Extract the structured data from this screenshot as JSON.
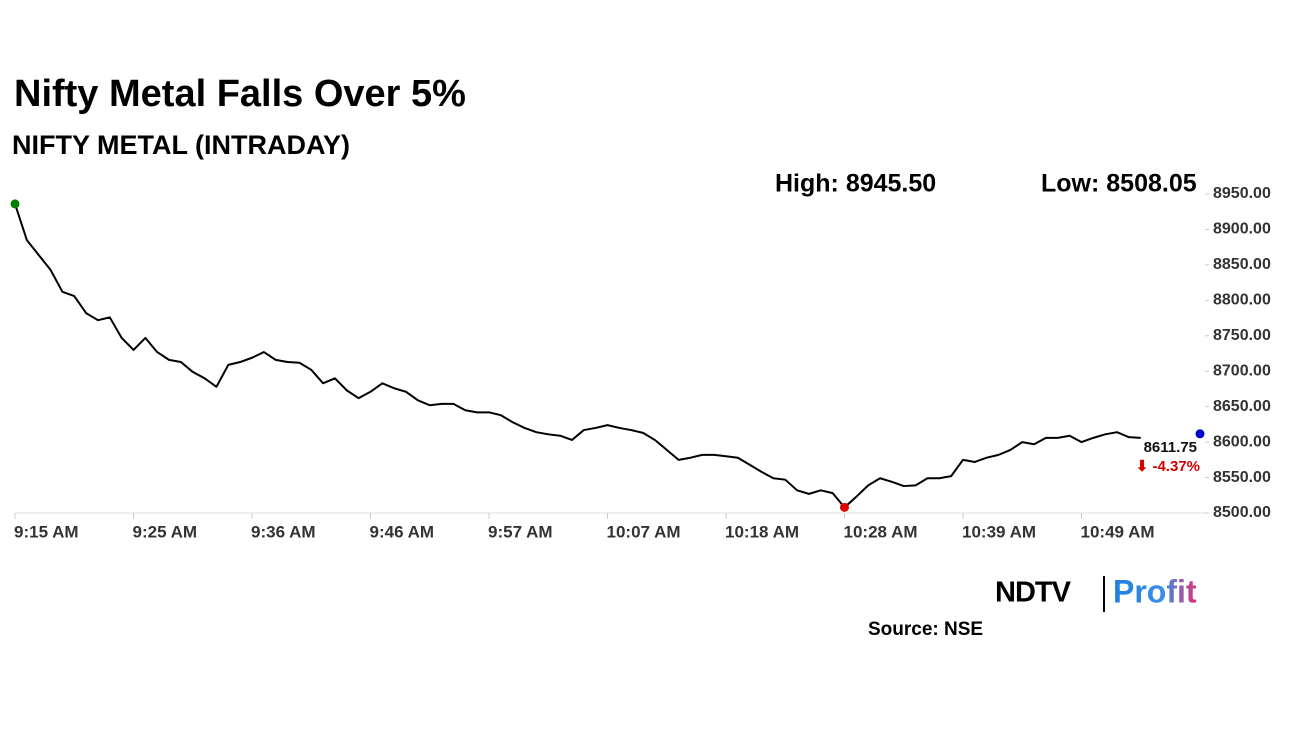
{
  "chart_data": {
    "type": "line",
    "title": "Nifty Metal Falls Over 5%",
    "subtitle": "NIFTY METAL (INTRADAY)",
    "annotations": {
      "high": "High: 8945.50",
      "low": "Low: 8508.05",
      "last": "8611.75",
      "change": "⬇ -4.37%"
    },
    "source": "Source: NSE",
    "logo": {
      "left": "NDTV",
      "right": "Profit"
    },
    "color": "#000000",
    "markers": {
      "start": "#008000",
      "low": "#e00000",
      "last": "#0000cc"
    },
    "categories": [
      "9:15 AM",
      null,
      null,
      null,
      null,
      null,
      null,
      null,
      null,
      null,
      "9:25 AM",
      null,
      null,
      null,
      null,
      null,
      null,
      null,
      null,
      null,
      "9:36 AM",
      null,
      null,
      null,
      null,
      null,
      null,
      null,
      null,
      null,
      "9:46 AM",
      null,
      null,
      null,
      null,
      null,
      null,
      null,
      null,
      null,
      "9:57 AM",
      null,
      null,
      null,
      null,
      null,
      null,
      null,
      null,
      null,
      "10:07 AM",
      null,
      null,
      null,
      null,
      null,
      null,
      null,
      null,
      null,
      "10:18 AM",
      null,
      null,
      null,
      null,
      null,
      null,
      null,
      null,
      null,
      "10:28 AM",
      null,
      null,
      null,
      null,
      null,
      null,
      null,
      null,
      null,
      "10:39 AM",
      null,
      null,
      null,
      null,
      null,
      null,
      null,
      null,
      null,
      "10:49 AM",
      null,
      null,
      null,
      null,
      null,
      null,
      null,
      null,
      null,
      null
    ],
    "values": [
      8936,
      8885,
      8864,
      8843,
      8812,
      8806,
      8782,
      8772,
      8776,
      8747,
      8730,
      8747,
      8727,
      8716,
      8713,
      8699,
      8690,
      8678,
      8709,
      8713,
      8719,
      8727,
      8716,
      8713,
      8712,
      8702,
      8683,
      8690,
      8673,
      8662,
      8671,
      8683,
      8676,
      8671,
      8659,
      8652,
      8654,
      8654,
      8645,
      8642,
      8642,
      8638,
      8628,
      8620,
      8614,
      8611,
      8609,
      8603,
      8617,
      8620,
      8624,
      8620,
      8617,
      8613,
      8603,
      8589,
      8575,
      8578,
      8582,
      8582,
      8580,
      8578,
      8568,
      8558,
      8549,
      8547,
      8532,
      8527,
      8532,
      8528,
      8508,
      8523,
      8539,
      8549,
      8544,
      8538,
      8539,
      8549,
      8549,
      8552,
      8575,
      8572,
      8578,
      8582,
      8589,
      8600,
      8597,
      8606,
      8606,
      8609,
      8600,
      8606,
      8611,
      8614,
      8607,
      8606,
      null,
      null,
      null,
      null,
      8611.75
    ],
    "low_index": 70,
    "ylim": [
      8500,
      8950
    ],
    "yticks": [
      {
        "value": 8500,
        "label": "8500.00"
      },
      {
        "value": 8550,
        "label": "8550.00"
      },
      {
        "value": 8600,
        "label": "8600.00"
      },
      {
        "value": 8650,
        "label": "8650.00"
      },
      {
        "value": 8700,
        "label": "8700.00"
      },
      {
        "value": 8750,
        "label": "8750.00"
      },
      {
        "value": 8800,
        "label": "8800.00"
      },
      {
        "value": 8850,
        "label": "8850.00"
      },
      {
        "value": 8900,
        "label": "8900.00"
      },
      {
        "value": 8950,
        "label": "8950.00"
      }
    ]
  }
}
